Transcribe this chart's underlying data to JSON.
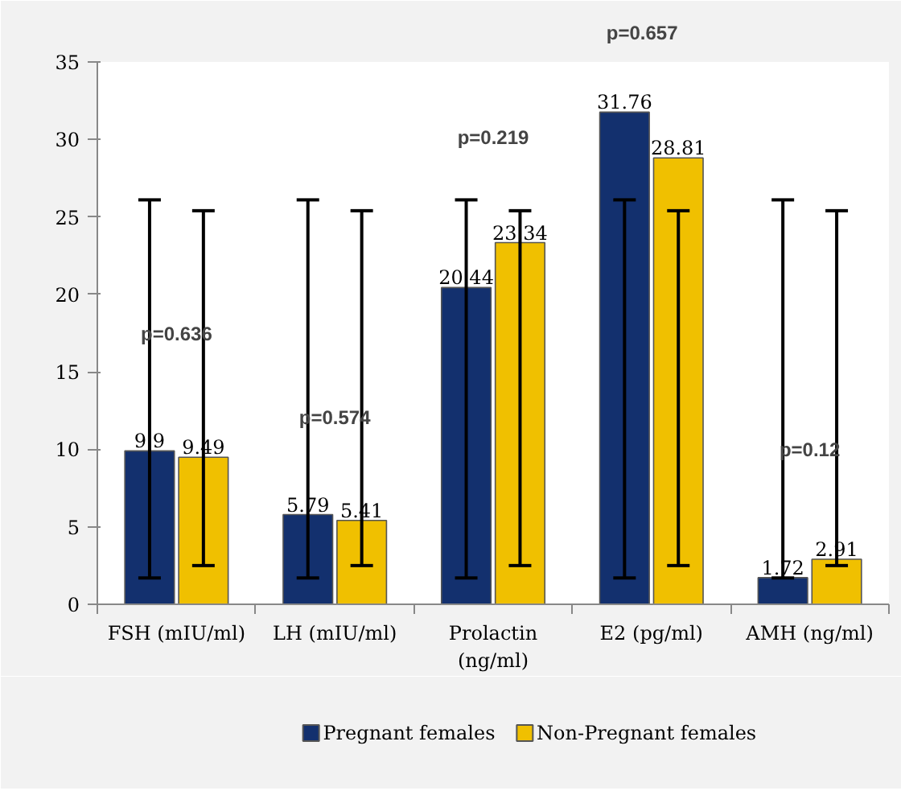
{
  "chart_data": {
    "type": "bar",
    "categories": [
      "FSH (mIU/ml)",
      "LH (mIU/ml)",
      "Prolactin (ng/ml)",
      "E2 (pg/ml)",
      "AMH (ng/ml)"
    ],
    "series": [
      {
        "name": "Pregnant females",
        "color": "#13306e",
        "values": [
          9.9,
          5.79,
          20.44,
          31.76,
          1.72
        ],
        "errors": [
          [
            1.7,
            26.1
          ],
          [
            1.7,
            26.1
          ],
          [
            1.7,
            26.1
          ],
          [
            1.7,
            26.1
          ],
          [
            1.7,
            26.1
          ]
        ]
      },
      {
        "name": "Non-Pregnant females",
        "color": "#f0c000",
        "values": [
          9.49,
          5.41,
          23.34,
          28.81,
          2.91
        ],
        "errors": [
          [
            2.5,
            25.4
          ],
          [
            2.5,
            25.4
          ],
          [
            2.5,
            25.4
          ],
          [
            2.5,
            25.4
          ],
          [
            2.5,
            25.4
          ]
        ]
      }
    ],
    "ylim": [
      0,
      35
    ],
    "yticks": [
      0,
      5,
      10,
      15,
      20,
      25,
      30,
      35
    ],
    "data_labels": true,
    "grid": false,
    "legend": "bottom",
    "annotations": [
      "p=0.636",
      "p=0.574",
      "p=0.219",
      "p=0.657",
      "p=0.12"
    ]
  }
}
